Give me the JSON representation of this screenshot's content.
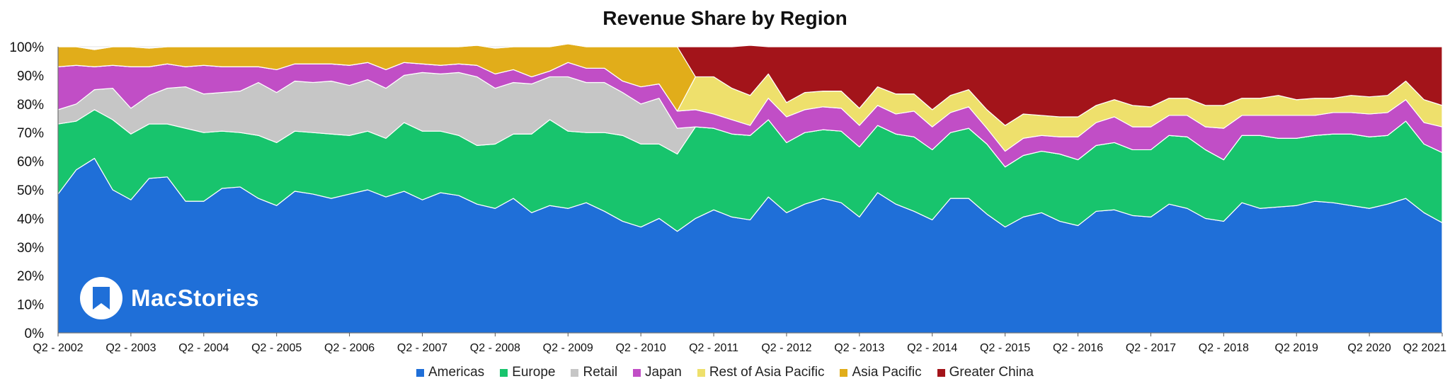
{
  "chart_data": {
    "type": "area",
    "stacked": true,
    "percent": true,
    "title": "Revenue Share by Region",
    "x_tick_labels": [
      "Q2 - 2002",
      "Q2 - 2003",
      "Q2 - 2004",
      "Q2 - 2005",
      "Q2 - 2006",
      "Q2 - 2007",
      "Q2 - 2008",
      "Q2 - 2009",
      "Q2 - 2010",
      "Q2 - 2011",
      "Q2 - 2012",
      "Q2 - 2013",
      "Q2 - 2014",
      "Q2 - 2015",
      "Q2 - 2016",
      "Q2 - 2017",
      "Q2 - 2018",
      "Q2 2019",
      "Q2 2020",
      "Q2 2021"
    ],
    "y_tick_labels": [
      "0%",
      "10%",
      "20%",
      "30%",
      "40%",
      "50%",
      "60%",
      "70%",
      "80%",
      "90%",
      "100%"
    ],
    "ylim": [
      0,
      100
    ],
    "quarters_per_tick": 4,
    "legend_position": "bottom",
    "series": [
      {
        "name": "Americas",
        "color": "#1f6fd8",
        "values": [
          48.5,
          57,
          61,
          50,
          46.5,
          54,
          54.5,
          46,
          46,
          50.5,
          51,
          47,
          44.5,
          49.5,
          48.5,
          47,
          48.5,
          50,
          47.5,
          49.5,
          46.5,
          49,
          48,
          45,
          43.5,
          47,
          42,
          44.5,
          43.5,
          45.5,
          42.5,
          39,
          37,
          40,
          35.5,
          40,
          43,
          40.5,
          39.5,
          47.5,
          42,
          45,
          47,
          45.5,
          40.5,
          49,
          45,
          42.5,
          39.5,
          47,
          47,
          41.5,
          37,
          40.5,
          42,
          39,
          37.5,
          42.5,
          43,
          41,
          40.5,
          45,
          43.5,
          40,
          39,
          45.5,
          43.5,
          44,
          44.5,
          46,
          45.5,
          44.5,
          43.5,
          45,
          47,
          42,
          38.5
        ]
      },
      {
        "name": "Europe",
        "color": "#18c46d",
        "values": [
          24.5,
          17,
          17,
          24.5,
          23,
          19,
          18.5,
          25.5,
          24,
          20,
          19,
          22,
          22,
          21,
          21.5,
          22.5,
          20.5,
          20.5,
          20.5,
          24,
          24,
          21.5,
          21,
          20.5,
          22.5,
          22.5,
          27.5,
          30,
          27,
          24.5,
          27.5,
          30,
          29,
          26,
          27,
          32,
          28.5,
          29,
          29.5,
          27,
          24.5,
          25,
          24,
          25,
          24.5,
          23.5,
          24.5,
          26,
          24.5,
          23,
          24.5,
          24.5,
          21,
          21.5,
          21.5,
          23.5,
          23,
          23,
          23.5,
          23,
          23.5,
          24,
          25,
          24,
          21.5,
          23.5,
          25.5,
          24,
          23.5,
          23,
          24,
          25,
          25,
          24,
          27,
          24,
          24.5
        ]
      },
      {
        "name": "Retail",
        "color": "#c6c6c6",
        "values": [
          5,
          6,
          7,
          11,
          9,
          10,
          12.5,
          14.5,
          13.5,
          13.5,
          14.5,
          18.5,
          17.5,
          17.5,
          17.5,
          18.5,
          17.5,
          18,
          17.5,
          16.5,
          20.5,
          20,
          22,
          24,
          19.5,
          18,
          17.5,
          15,
          19,
          17.5,
          17.5,
          15,
          14,
          16,
          9,
          0,
          0,
          0,
          0,
          0,
          0,
          0,
          0,
          0,
          0,
          0,
          0,
          0,
          0,
          0,
          0,
          0,
          0,
          0,
          0,
          0,
          0,
          0,
          0,
          0,
          0,
          0,
          0,
          0,
          0,
          0,
          0,
          0,
          0,
          0,
          0,
          0,
          0,
          0,
          0,
          0,
          0
        ]
      },
      {
        "name": "Japan",
        "color": "#c14ec6",
        "values": [
          15,
          13.5,
          8,
          8,
          14.5,
          10,
          8.5,
          7,
          10,
          9,
          8.5,
          5.5,
          8,
          6,
          6.5,
          6,
          7,
          6,
          6.5,
          4.5,
          3,
          3,
          3,
          4,
          5,
          4.5,
          2.5,
          2,
          5,
          5,
          5,
          4,
          6,
          5,
          6,
          6,
          5,
          5,
          3.5,
          7.5,
          9,
          8,
          8,
          8,
          7.5,
          7,
          7,
          9,
          8,
          7,
          7.5,
          5.5,
          5.5,
          6,
          5.5,
          6,
          8,
          8,
          9,
          8,
          8,
          7,
          7.5,
          8,
          11,
          7,
          7,
          8,
          8,
          7,
          7.5,
          7.5,
          8,
          8,
          7.5,
          7.5,
          9
        ]
      },
      {
        "name": "Rest of Asia Pacific",
        "color": "#eee06c",
        "values": [
          0,
          0,
          0,
          0,
          0,
          0,
          0,
          0,
          0,
          0,
          0,
          0,
          0,
          0,
          0,
          0,
          0,
          0,
          0,
          0,
          0,
          0,
          0,
          0,
          0,
          0,
          0,
          0,
          0,
          0,
          0,
          0,
          0,
          0,
          0,
          11.5,
          13,
          11,
          10.5,
          8.5,
          5,
          6,
          5.5,
          6,
          6,
          6.5,
          7,
          6,
          6,
          6,
          6,
          6.5,
          9,
          8.5,
          7,
          7,
          7,
          6,
          6,
          7.5,
          7,
          6,
          6,
          7.5,
          8,
          6,
          6,
          7,
          5.5,
          6,
          5,
          6,
          6,
          6,
          6.5,
          8,
          7.5
        ]
      },
      {
        "name": "Asia Pacific",
        "color": "#e1ad1a",
        "values": [
          7,
          6.5,
          6,
          6.5,
          7,
          6.5,
          6,
          7,
          6.5,
          7,
          7,
          7,
          8,
          6,
          6,
          6,
          6.5,
          5.5,
          8,
          5.5,
          6,
          6.5,
          6,
          7,
          9,
          8,
          10.5,
          8.5,
          6.5,
          7.5,
          7.5,
          12,
          14,
          13,
          22.5,
          0,
          0,
          0,
          0,
          0,
          0,
          0,
          0,
          0,
          0,
          0,
          0,
          0,
          0,
          0,
          0,
          0,
          0,
          0,
          0,
          0,
          0,
          0,
          0,
          0,
          0,
          0,
          0,
          0,
          0,
          0,
          0,
          0,
          0,
          0,
          0,
          0,
          0,
          0,
          0,
          0,
          0
        ]
      },
      {
        "name": "Greater China",
        "color": "#a3141a",
        "values": [
          0,
          0,
          0,
          0,
          0,
          0,
          0,
          0,
          0,
          0,
          0,
          0,
          0,
          0,
          0,
          0,
          0,
          0,
          0,
          0,
          0,
          0,
          0,
          0,
          0,
          0,
          0,
          0,
          0,
          0,
          0,
          0,
          0,
          0,
          0,
          10.5,
          10.5,
          14.5,
          17.5,
          9.5,
          19.5,
          16,
          15.5,
          15.5,
          21.5,
          14,
          16.5,
          16.5,
          22,
          17,
          15,
          22,
          27.5,
          23.5,
          24,
          24.5,
          24.5,
          20.5,
          18.5,
          20.5,
          21,
          18,
          18,
          20.5,
          20.5,
          18,
          18,
          17,
          18.5,
          18,
          18,
          17,
          17.5,
          17,
          12,
          18.5,
          20.5
        ]
      }
    ]
  },
  "logo": {
    "text": "MacStories"
  }
}
